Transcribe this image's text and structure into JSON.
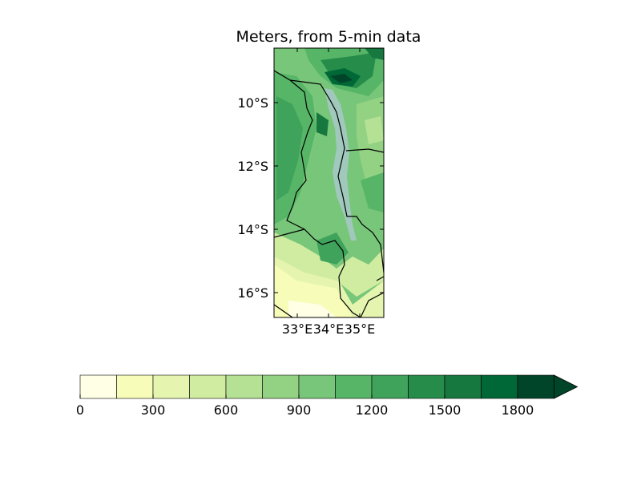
{
  "title": "Meters, from 5-min data",
  "map": {
    "lat_labels": [
      "10°S",
      "12°S",
      "14°S",
      "16°S"
    ],
    "lat_values": [
      -10,
      -12,
      -14,
      -16
    ],
    "lon_labels": [
      "33°E",
      "34°E",
      "35°E"
    ],
    "lon_values": [
      33,
      34,
      35
    ],
    "extent": {
      "lon_min": 32.0,
      "lon_max": 35.75,
      "lat_min": -16.8,
      "lat_max": -8.3
    }
  },
  "colorbar": {
    "tick_labels": [
      "0",
      "300",
      "600",
      "900",
      "1200",
      "1500",
      "1800"
    ],
    "levels": [
      0,
      150,
      300,
      450,
      600,
      750,
      900,
      1050,
      1200,
      1350,
      1500,
      1650,
      1800,
      1950
    ],
    "colors": [
      "#ffffe5",
      "#f7fcb9",
      "#e5f5b0",
      "#d0eca1",
      "#b5e194",
      "#94d283",
      "#78c679",
      "#56b567",
      "#3fa35b",
      "#268c4a",
      "#17783f",
      "#006837",
      "#004529"
    ],
    "extend": "max"
  }
}
